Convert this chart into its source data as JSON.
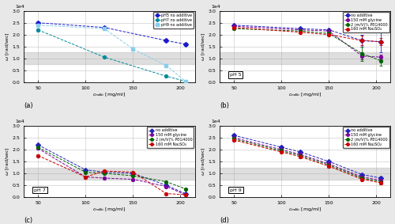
{
  "panel_a": {
    "xlabel": "c_{mAb} [mg/ml]",
    "ylabel": "ω [rad/sec]",
    "ylim": [
      0,
      30000
    ],
    "yticks": [
      0,
      5000,
      10000,
      15000,
      20000,
      25000,
      30000
    ],
    "gray_band": [
      7500,
      12500
    ],
    "series": [
      {
        "label": "pH5 no additive",
        "color": "#1A1ACD",
        "marker": "D",
        "mfc": "#1A1ACD",
        "x": [
          50,
          120,
          185,
          205
        ],
        "y": [
          25000,
          23000,
          17500,
          16000
        ],
        "yerr": [
          500,
          500,
          700,
          700
        ]
      },
      {
        "label": "pH7 no additive",
        "color": "#008B9A",
        "marker": "o",
        "mfc": "#008B9A",
        "x": [
          50,
          120,
          185,
          205
        ],
        "y": [
          22000,
          10500,
          2500,
          400
        ],
        "yerr": [
          500,
          400,
          300,
          150
        ]
      },
      {
        "label": "pH9 no additive",
        "color": "#87CEEB",
        "marker": "s",
        "mfc": "#87CEEB",
        "x": [
          50,
          120,
          150,
          185,
          205
        ],
        "y": [
          24000,
          22500,
          14000,
          7000,
          400
        ],
        "yerr": [
          500,
          500,
          600,
          400,
          150
        ]
      }
    ]
  },
  "panel_b": {
    "ph_label": "pH 5",
    "xlabel": "c_{mAb} [mg/ml]",
    "ylabel": "ω [rad/sec]",
    "ylim": [
      0,
      30000
    ],
    "yticks": [
      0,
      5000,
      10000,
      15000,
      20000,
      25000,
      30000
    ],
    "gray_band": [
      7500,
      12500
    ],
    "series": [
      {
        "label": "no additive",
        "color": "#2222BB",
        "marker": "D",
        "mfc": "#2222BB",
        "x": [
          50,
          120,
          150,
          185,
          205
        ],
        "y": [
          24000,
          22500,
          22000,
          17500,
          17000
        ],
        "yerr": [
          400,
          400,
          400,
          2500,
          4500
        ]
      },
      {
        "label": "150 mM glycine",
        "color": "#7B0099",
        "marker": "o",
        "mfc": "#7B0099",
        "x": [
          50,
          120,
          150,
          185,
          205
        ],
        "y": [
          23500,
          22000,
          21500,
          11000,
          10500
        ],
        "yerr": [
          400,
          400,
          400,
          1500,
          1000
        ]
      },
      {
        "label": "2 (m/V)% PEG4000",
        "color": "#006400",
        "marker": "o",
        "mfc": "#006400",
        "x": [
          50,
          120,
          150,
          185,
          205
        ],
        "y": [
          22500,
          21500,
          20500,
          12000,
          9000
        ],
        "yerr": [
          400,
          400,
          400,
          3000,
          2000
        ]
      },
      {
        "label": "160 mM Na₂SO₄",
        "color": "#CC0000",
        "marker": "o",
        "mfc": "#CC0000",
        "x": [
          50,
          120,
          150,
          185,
          205
        ],
        "y": [
          23000,
          21000,
          20000,
          17500,
          17000
        ],
        "yerr": [
          400,
          400,
          500,
          2000,
          1500
        ]
      }
    ]
  },
  "panel_c": {
    "ph_label": "pH 7",
    "xlabel": "c_{mAb} [mg/ml]",
    "ylabel": "ω [rad/sec]",
    "ylim": [
      0,
      30000
    ],
    "yticks": [
      0,
      5000,
      10000,
      15000,
      20000,
      25000,
      30000
    ],
    "gray_band": [
      7500,
      12500
    ],
    "series": [
      {
        "label": "no additive",
        "color": "#2222BB",
        "marker": "D",
        "mfc": "#2222BB",
        "x": [
          50,
          100,
          120,
          150,
          185,
          205
        ],
        "y": [
          22000,
          11500,
          10500,
          10000,
          5000,
          1500
        ],
        "yerr": [
          400,
          300,
          300,
          300,
          250,
          200
        ]
      },
      {
        "label": "150 mM glycine",
        "color": "#7B0099",
        "marker": "o",
        "mfc": "#7B0099",
        "x": [
          50,
          100,
          120,
          150,
          185,
          205
        ],
        "y": [
          20500,
          8500,
          8000,
          7500,
          4500,
          1000
        ],
        "yerr": [
          400,
          300,
          300,
          300,
          200,
          150
        ]
      },
      {
        "label": "2 (m/V)% PEG4000",
        "color": "#006400",
        "marker": "o",
        "mfc": "#006400",
        "x": [
          50,
          100,
          120,
          150,
          185,
          205
        ],
        "y": [
          21000,
          10500,
          10000,
          9000,
          6500,
          3500
        ],
        "yerr": [
          400,
          300,
          300,
          300,
          250,
          200
        ]
      },
      {
        "label": "160 mM Na₂SO₄",
        "color": "#CC0000",
        "marker": "o",
        "mfc": "#CC0000",
        "x": [
          50,
          100,
          120,
          150,
          185,
          205
        ],
        "y": [
          17500,
          8500,
          11000,
          10500,
          1500,
          1000
        ],
        "yerr": [
          400,
          300,
          300,
          300,
          200,
          150
        ]
      }
    ]
  },
  "panel_d": {
    "ph_label": "pH 9",
    "xlabel": "c_{mAb} [mg/ml]",
    "ylabel": "ω [rad/sec]",
    "ylim": [
      0,
      30000
    ],
    "yticks": [
      0,
      5000,
      10000,
      15000,
      20000,
      25000,
      30000
    ],
    "gray_band": [
      7500,
      12500
    ],
    "series": [
      {
        "label": "no additive",
        "color": "#2222BB",
        "marker": "D",
        "mfc": "#2222BB",
        "x": [
          50,
          100,
          120,
          150,
          185,
          205
        ],
        "y": [
          26000,
          21000,
          19000,
          15000,
          9500,
          8000
        ],
        "yerr": [
          600,
          500,
          500,
          500,
          600,
          600
        ]
      },
      {
        "label": "150 mM glycine",
        "color": "#7B0099",
        "marker": "o",
        "mfc": "#7B0099",
        "x": [
          50,
          100,
          120,
          150,
          185,
          205
        ],
        "y": [
          25000,
          20000,
          18000,
          14000,
          8500,
          7000
        ],
        "yerr": [
          500,
          500,
          500,
          500,
          500,
          500
        ]
      },
      {
        "label": "2 (m/V)% PEG4000",
        "color": "#006400",
        "marker": "o",
        "mfc": "#006400",
        "x": [
          50,
          100,
          120,
          150,
          185,
          205
        ],
        "y": [
          24500,
          19500,
          17500,
          13500,
          8000,
          6500
        ],
        "yerr": [
          500,
          500,
          500,
          500,
          500,
          500
        ]
      },
      {
        "label": "160 mM Na₂SO₄",
        "color": "#CC0000",
        "marker": "o",
        "mfc": "#CC0000",
        "x": [
          50,
          100,
          120,
          150,
          185,
          205
        ],
        "y": [
          24000,
          19000,
          17000,
          13000,
          7500,
          6000
        ],
        "yerr": [
          500,
          500,
          500,
          500,
          500,
          500
        ]
      }
    ]
  },
  "fig_bg": "#e8e8e8",
  "ax_bg": "#ffffff",
  "gray_band_color": "#c8c8c8",
  "gray_band_alpha": 0.6
}
